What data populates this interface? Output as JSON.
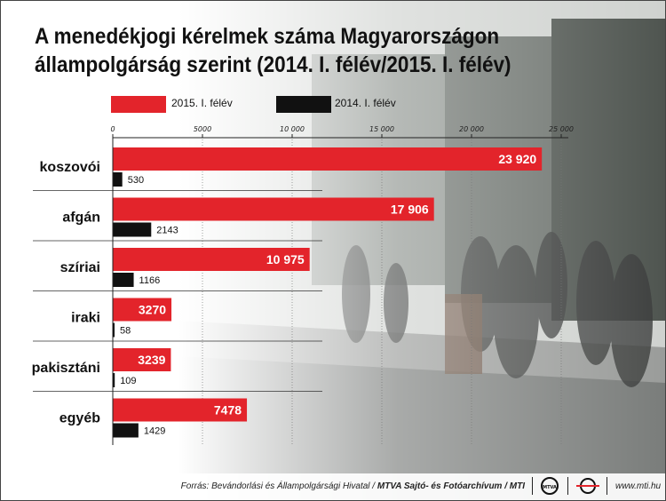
{
  "title": "A menedékjogi kérelmek száma Magyarországon állampolgárság szerint (2014. I. félév/2015. I. félév)",
  "legend": [
    {
      "label": "2015. I. félév",
      "color": "#e3242b"
    },
    {
      "label": "2014. I. félév",
      "color": "#111111"
    }
  ],
  "chart_data": {
    "type": "bar",
    "orientation": "horizontal",
    "title": "A menedékjogi kérelmek száma Magyarországon állampolgárság szerint (2014. I. félév/2015. I. félév)",
    "categories": [
      "koszovói",
      "afgán",
      "szíriai",
      "iraki",
      "pakisztáni",
      "egyéb"
    ],
    "series": [
      {
        "name": "2015. I. félév",
        "color": "#e3242b",
        "values": [
          23920,
          17906,
          10975,
          3270,
          3239,
          7478
        ],
        "labels": [
          "23 920",
          "17 906",
          "10 975",
          "3270",
          "3239",
          "7478"
        ]
      },
      {
        "name": "2014. I. félév",
        "color": "#111111",
        "values": [
          530,
          2143,
          1166,
          58,
          109,
          1429
        ],
        "labels": [
          "530",
          "2143",
          "1166",
          "58",
          "109",
          "1429"
        ]
      }
    ],
    "xlim": [
      0,
      25000
    ],
    "ticks": [
      0,
      5000,
      10000,
      15000,
      20000,
      25000
    ],
    "tick_labels": [
      "0",
      "5000",
      "10 000",
      "15 000",
      "20 000",
      "25 000"
    ],
    "grid": "vertical dotted lines at ticks",
    "legend_position": "top"
  },
  "footer": {
    "source_prefix": "Forrás: Bevándorlási és Állampolgársági Hivatal / ",
    "source_agency": "MTVA Sajtó- és Fotóarchívum / MTI",
    "mtva_logo_text": "MTVA",
    "website": "www.mti.hu"
  }
}
